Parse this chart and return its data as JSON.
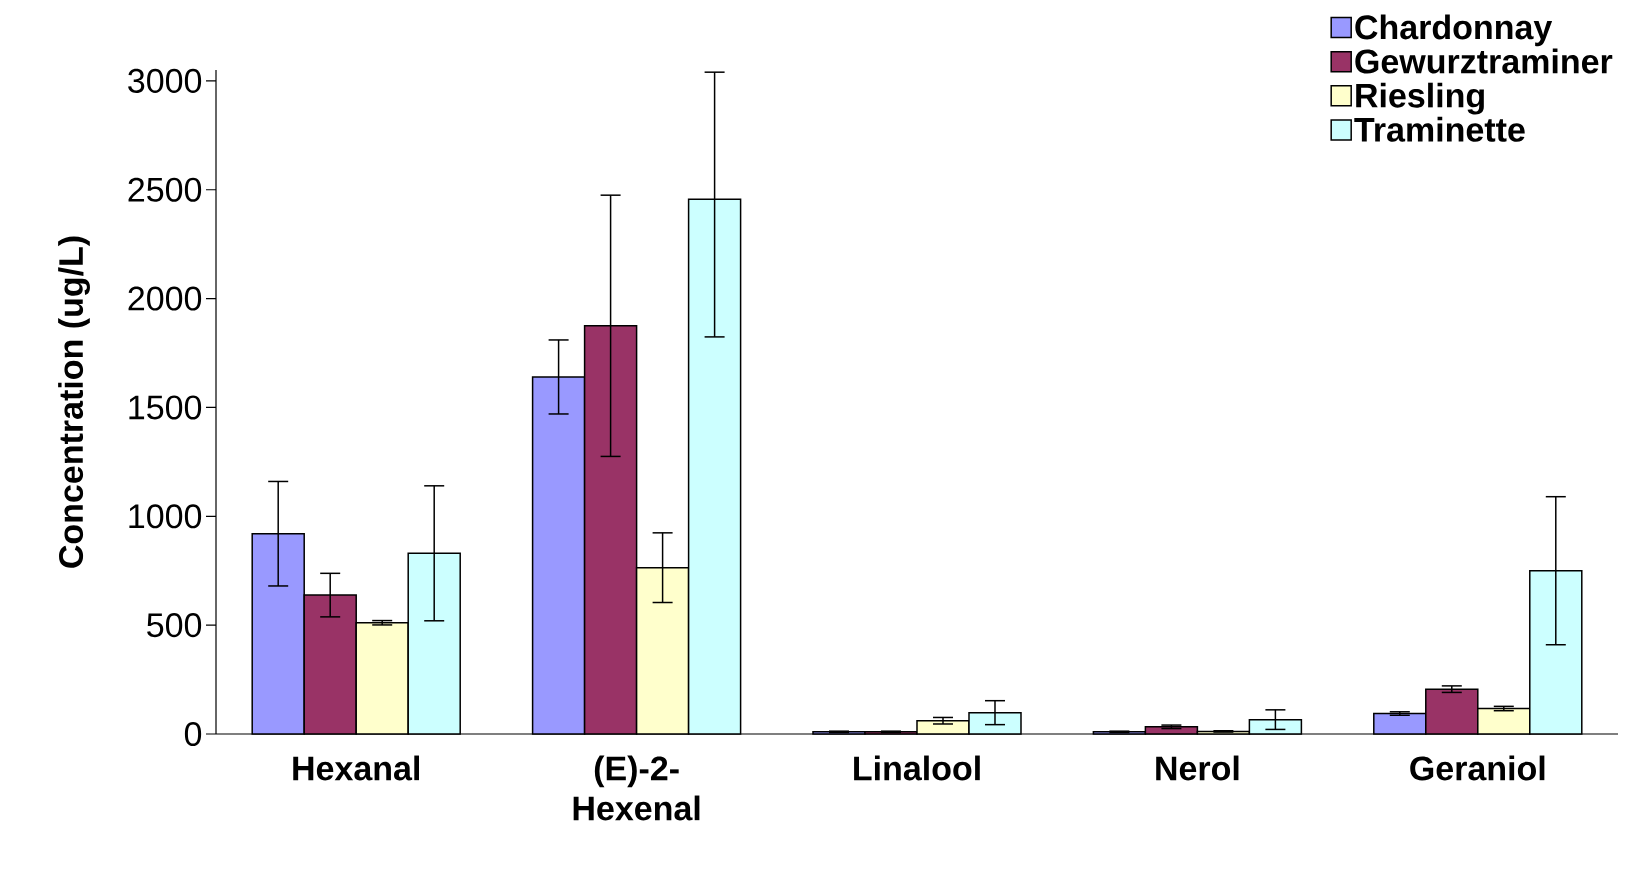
{
  "chart_data": {
    "type": "bar",
    "ylabel": "Concentration (ug/L)",
    "categories": [
      "Hexanal",
      "(E)-2-Hexenal",
      "Linalool",
      "Nerol",
      "Geraniol"
    ],
    "series": [
      {
        "name": "Chardonnay",
        "color": "#9999ff",
        "values": [
          920,
          1640,
          10,
          10,
          94
        ],
        "errors": [
          240,
          170,
          3,
          3,
          8
        ]
      },
      {
        "name": "Gewurztraminer",
        "color": "#993366",
        "values": [
          638,
          1875,
          10,
          33,
          206
        ],
        "errors": [
          100,
          600,
          3,
          8,
          15
        ]
      },
      {
        "name": "Riesling",
        "color": "#ffffcc",
        "values": [
          511,
          764,
          61,
          12,
          117
        ],
        "errors": [
          10,
          160,
          15,
          3,
          10
        ]
      },
      {
        "name": "Traminette",
        "color": "#ccffff",
        "values": [
          830,
          2456,
          98,
          66,
          750
        ],
        "errors": [
          310,
          [
            1824,
            3040
          ],
          55,
          45,
          340
        ]
      }
    ],
    "ylim": [
      0,
      3050
    ],
    "yticks": [
      0,
      500,
      1000,
      1500,
      2000,
      2500,
      3000
    ],
    "grid": false,
    "legend": "top right"
  }
}
